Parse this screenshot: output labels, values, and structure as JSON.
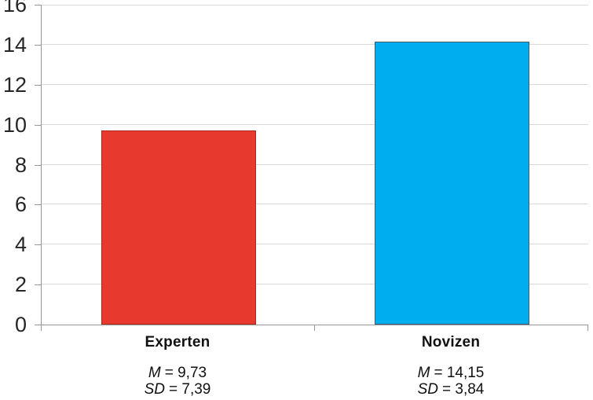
{
  "chart_data": {
    "type": "bar",
    "title": "",
    "xlabel": "",
    "ylabel": "",
    "categories": [
      "Experten",
      "Novizen"
    ],
    "values": [
      9.73,
      14.15
    ],
    "ylim": [
      0,
      16
    ],
    "yticks": [
      0,
      2,
      4,
      6,
      8,
      10,
      12,
      14,
      16
    ],
    "grid": true,
    "legend_position": "none",
    "bar_colors": [
      "#e8392e",
      "#00aeef"
    ],
    "bar_border_colors": [
      "#ab2a1e",
      "#44586a"
    ],
    "gridline_color": "#d9d9d9",
    "axis_color": "#969696",
    "text_color": "#111111",
    "stats": [
      {
        "m_label": "M",
        "m_value": "= 9,73",
        "sd_label": "SD",
        "sd_value": "= 7,39"
      },
      {
        "m_label": "M",
        "m_value": "= 14,15",
        "sd_label": "SD",
        "sd_value": "= 3,84"
      }
    ]
  }
}
